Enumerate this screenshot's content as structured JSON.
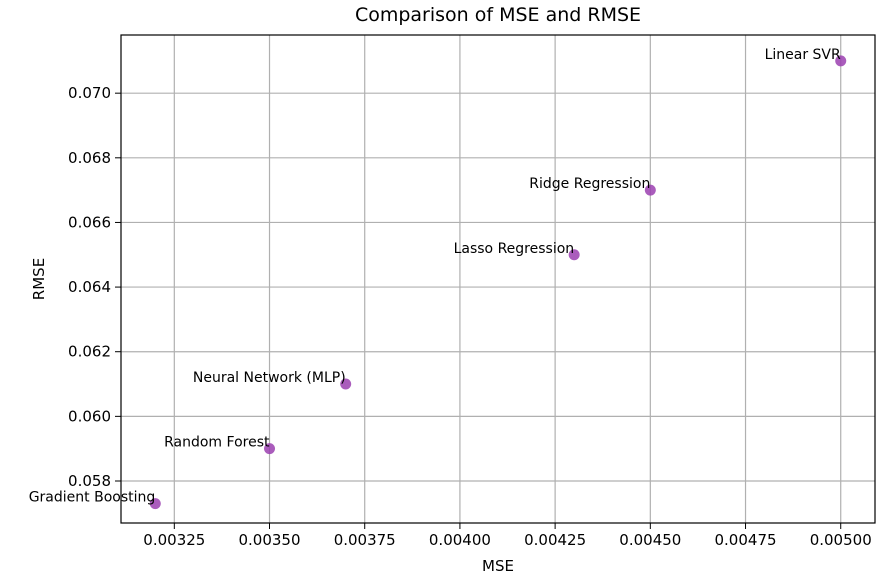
{
  "chart_data": {
    "type": "scatter",
    "title": "Comparison of MSE and RMSE",
    "xlabel": "MSE",
    "ylabel": "RMSE",
    "xlim": [
      0.00311,
      0.00509
    ],
    "ylim": [
      0.0567,
      0.0718
    ],
    "x_ticks": [
      0.00325,
      0.0035,
      0.00375,
      0.004,
      0.00425,
      0.0045,
      0.00475,
      0.005
    ],
    "x_tick_labels": [
      "0.00325",
      "0.00350",
      "0.00375",
      "0.00400",
      "0.00425",
      "0.00450",
      "0.00475",
      "0.00500"
    ],
    "y_ticks": [
      0.058,
      0.06,
      0.062,
      0.064,
      0.066,
      0.068,
      0.07
    ],
    "y_tick_labels": [
      "0.058",
      "0.060",
      "0.062",
      "0.064",
      "0.066",
      "0.068",
      "0.070"
    ],
    "grid": true,
    "marker_color": "#9b3fb0",
    "points": [
      {
        "label": "Gradient Boosting",
        "x": 0.0032,
        "y": 0.0573
      },
      {
        "label": "Random Forest",
        "x": 0.0035,
        "y": 0.059
      },
      {
        "label": "Neural Network (MLP)",
        "x": 0.0037,
        "y": 0.061
      },
      {
        "label": "Lasso Regression",
        "x": 0.0043,
        "y": 0.065
      },
      {
        "label": "Ridge Regression",
        "x": 0.0045,
        "y": 0.067
      },
      {
        "label": "Linear SVR",
        "x": 0.005,
        "y": 0.071
      }
    ]
  }
}
